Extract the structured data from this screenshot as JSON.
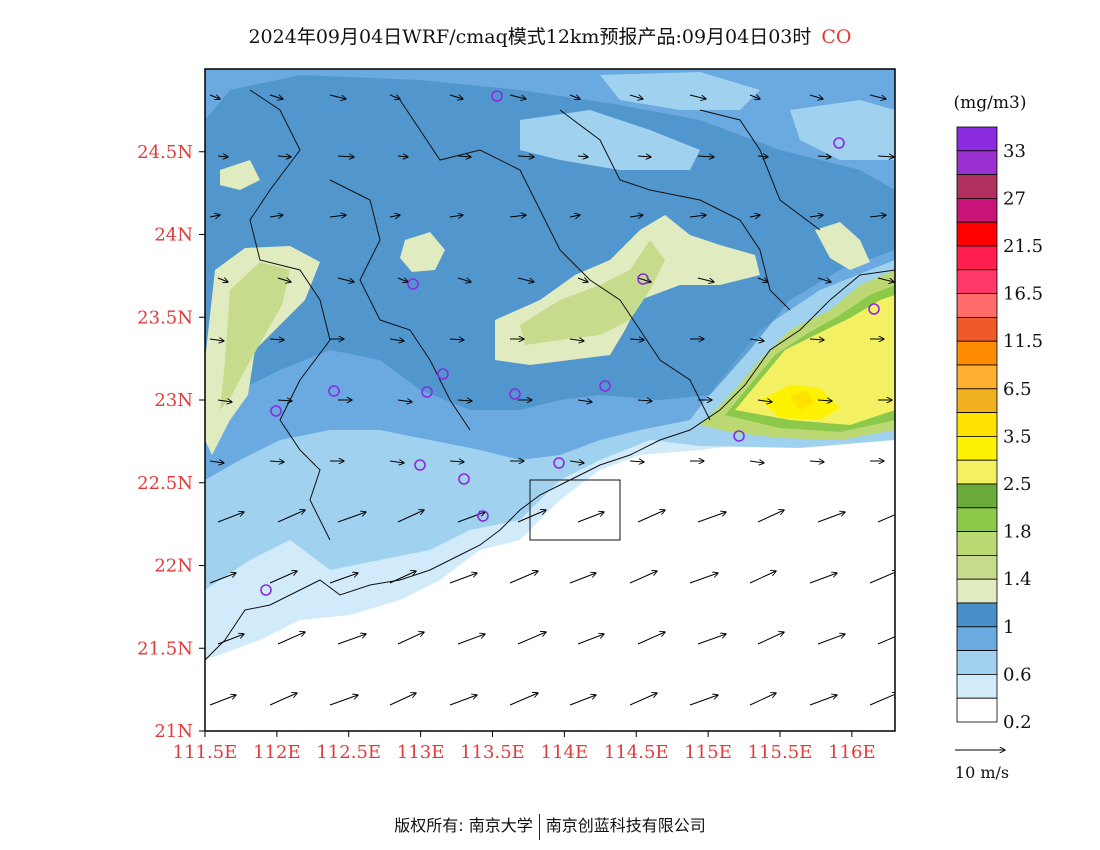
{
  "title": {
    "main": "2024年09月04日WRF/cmaq模式12km预报产品:09月04日03时",
    "species": "CO"
  },
  "map": {
    "lat_labels": [
      "24.5N",
      "24N",
      "23.5N",
      "23N",
      "22.5N",
      "22N",
      "21.5N",
      "21N"
    ],
    "lon_labels": [
      "111.5E",
      "112E",
      "112.5E",
      "113E",
      "113.5E",
      "114E",
      "114.5E",
      "115E",
      "115.5E",
      "116E"
    ],
    "lat_range": [
      21,
      25
    ],
    "lon_range": [
      111.5,
      116.3
    ]
  },
  "legend": {
    "unit": "(mg/m3)",
    "labels": [
      "33",
      "27",
      "21.5",
      "16.5",
      "11.5",
      "6.5",
      "3.5",
      "2.5",
      "1.8",
      "1.4",
      "1",
      "0.6",
      "0.2"
    ],
    "colors_top_to_bottom": [
      "#8a2be2",
      "#9b30d0",
      "#b03060",
      "#c81478",
      "#ff0000",
      "#ff1f4f",
      "#ff3a6a",
      "#ff6a6a",
      "#f05a2a",
      "#ff8c00",
      "#ffb030",
      "#f0b020",
      "#ffe100",
      "#fff200",
      "#f4f064",
      "#6aaa3a",
      "#8cc84a",
      "#bcd873",
      "#c6dc8c",
      "#e1ebc0",
      "#4a90c8",
      "#6aaae0",
      "#a0d2f0",
      "#d2ebfa",
      "#ffffff"
    ],
    "wind_scale_label": "10 m/s"
  },
  "footer": {
    "left": "版权所有: 南京大学",
    "right": "南京创蓝科技有限公司"
  },
  "colors": {
    "axis_label": "#e23a3a",
    "ring": "#8a2be2"
  }
}
